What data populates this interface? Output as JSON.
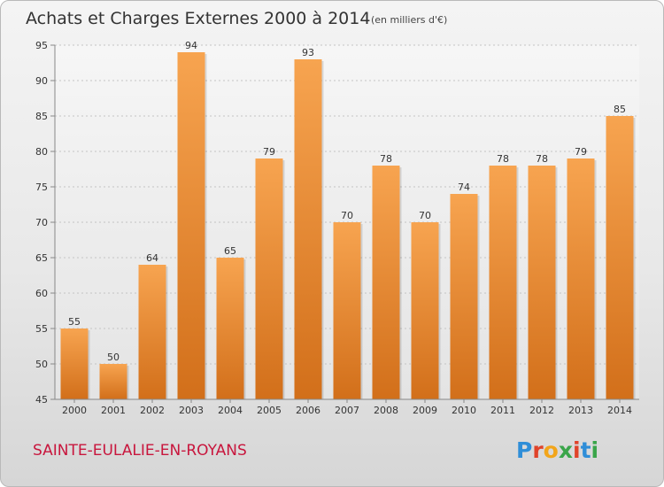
{
  "chart_data": {
    "type": "bar",
    "title": "Achats et Charges Externes 2000 à 2014",
    "subtitle": "(en milliers d'€)",
    "categories": [
      "2000",
      "2001",
      "2002",
      "2003",
      "2004",
      "2005",
      "2006",
      "2007",
      "2008",
      "2009",
      "2010",
      "2011",
      "2012",
      "2013",
      "2014"
    ],
    "values": [
      55,
      50,
      64,
      94,
      65,
      79,
      93,
      70,
      78,
      70,
      74,
      78,
      78,
      79,
      85
    ],
    "ylim": [
      45,
      95
    ],
    "yticks": [
      45,
      50,
      55,
      60,
      65,
      70,
      75,
      80,
      85,
      90,
      95
    ],
    "grid": true,
    "bar_color_top": "#f7a450",
    "bar_color_bottom": "#d26f1a"
  },
  "footer": {
    "location": "SAINTE-EULALIE-EN-ROYANS",
    "brand": "Proxiti",
    "brand_colors": [
      "#2f8ed8",
      "#e0432a",
      "#f2a51a",
      "#3aa54a",
      "#e0432a",
      "#2f8ed8",
      "#3aa54a"
    ]
  }
}
